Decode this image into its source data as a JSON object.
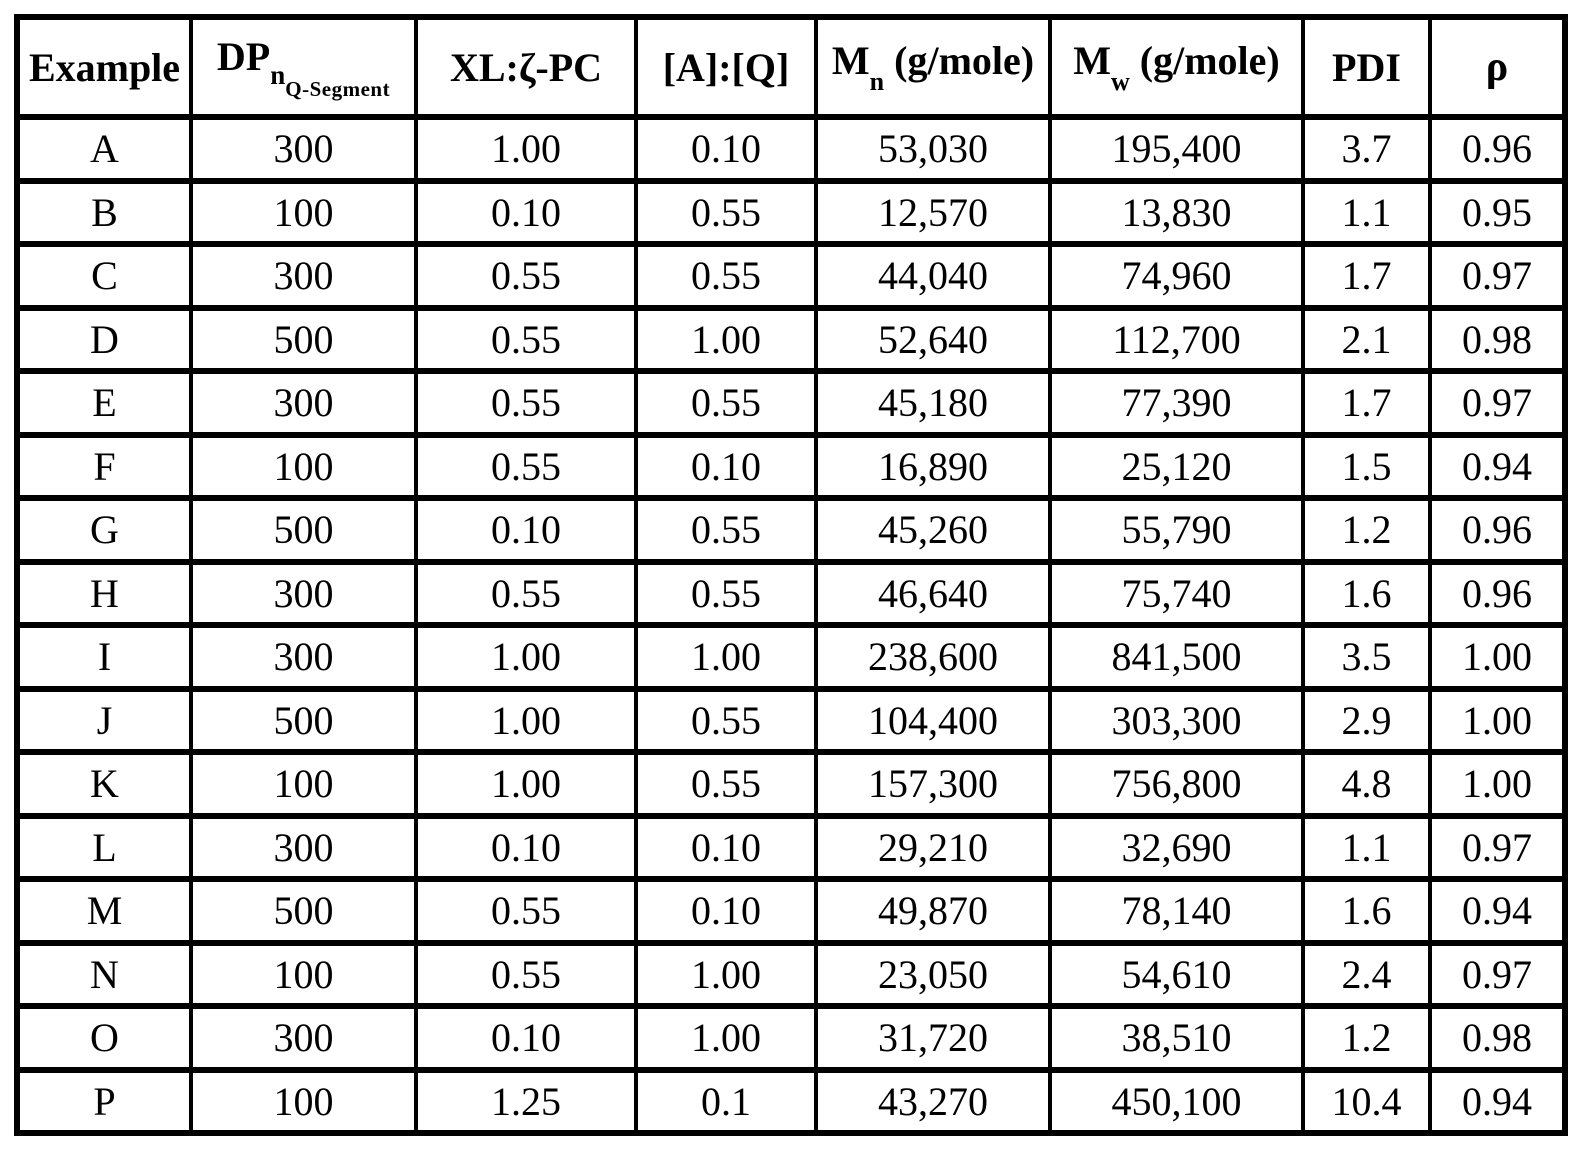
{
  "table": {
    "header": {
      "example": "Example",
      "dp": {
        "base": "DP",
        "sub": "n",
        "subsub": "Q-Segment"
      },
      "xl": "XL:ζ-PC",
      "aq": "[A]:[Q]",
      "mn": {
        "base": "M",
        "sub": "n",
        "rest": "(g/mole)"
      },
      "mw": {
        "base": "M",
        "sub": "w",
        "rest": "(g/mole)"
      },
      "pdi": "PDI",
      "rho": "ρ"
    },
    "rows": [
      [
        "A",
        "300",
        "1.00",
        "0.10",
        "53,030",
        "195,400",
        "3.7",
        "0.96"
      ],
      [
        "B",
        "100",
        "0.10",
        "0.55",
        "12,570",
        "13,830",
        "1.1",
        "0.95"
      ],
      [
        "C",
        "300",
        "0.55",
        "0.55",
        "44,040",
        "74,960",
        "1.7",
        "0.97"
      ],
      [
        "D",
        "500",
        "0.55",
        "1.00",
        "52,640",
        "112,700",
        "2.1",
        "0.98"
      ],
      [
        "E",
        "300",
        "0.55",
        "0.55",
        "45,180",
        "77,390",
        "1.7",
        "0.97"
      ],
      [
        "F",
        "100",
        "0.55",
        "0.10",
        "16,890",
        "25,120",
        "1.5",
        "0.94"
      ],
      [
        "G",
        "500",
        "0.10",
        "0.55",
        "45,260",
        "55,790",
        "1.2",
        "0.96"
      ],
      [
        "H",
        "300",
        "0.55",
        "0.55",
        "46,640",
        "75,740",
        "1.6",
        "0.96"
      ],
      [
        "I",
        "300",
        "1.00",
        "1.00",
        "238,600",
        "841,500",
        "3.5",
        "1.00"
      ],
      [
        "J",
        "500",
        "1.00",
        "0.55",
        "104,400",
        "303,300",
        "2.9",
        "1.00"
      ],
      [
        "K",
        "100",
        "1.00",
        "0.55",
        "157,300",
        "756,800",
        "4.8",
        "1.00"
      ],
      [
        "L",
        "300",
        "0.10",
        "0.10",
        "29,210",
        "32,690",
        "1.1",
        "0.97"
      ],
      [
        "M",
        "500",
        "0.55",
        "0.10",
        "49,870",
        "78,140",
        "1.6",
        "0.94"
      ],
      [
        "N",
        "100",
        "0.55",
        "1.00",
        "23,050",
        "54,610",
        "2.4",
        "0.97"
      ],
      [
        "O",
        "300",
        "0.10",
        "1.00",
        "31,720",
        "38,510",
        "1.2",
        "0.98"
      ],
      [
        "P",
        "100",
        "1.25",
        "0.1",
        "43,270",
        "450,100",
        "10.4",
        "0.94"
      ]
    ]
  }
}
